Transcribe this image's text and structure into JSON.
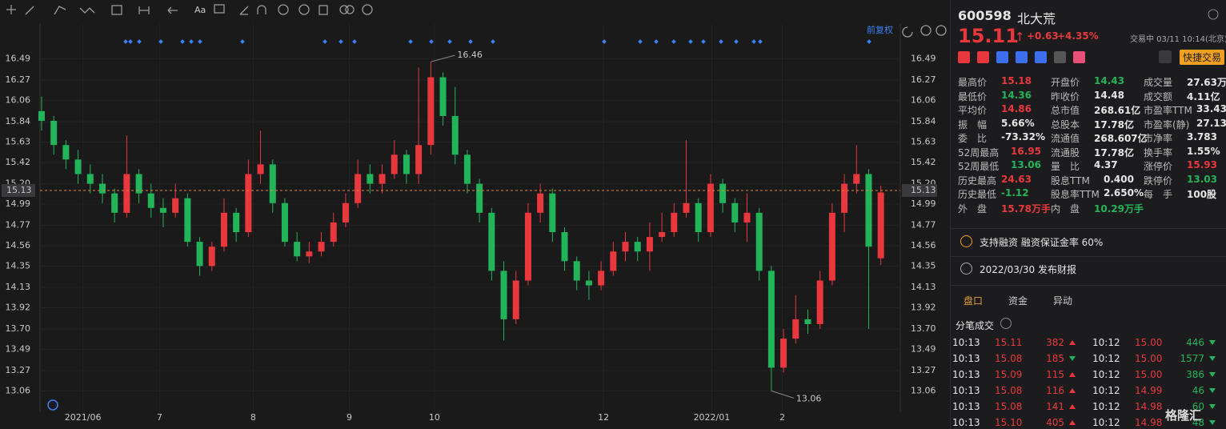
{
  "toolbar": {
    "font_label": "Aa"
  },
  "chart_data": {
    "type": "candlestick",
    "adjust_mode": "前复权",
    "up_color": "#e8383d",
    "down_color": "#22b45a",
    "grid": true,
    "ylim": [
      12.84,
      16.85
    ],
    "yticks": [
      16.49,
      16.27,
      16.06,
      15.84,
      15.63,
      15.42,
      {
        "value": 15.2,
        "label": "15.20"
      },
      14.99,
      14.77,
      14.56,
      14.35,
      14.13,
      13.92,
      {
        "value": 13.7,
        "label": "13.70"
      },
      13.49,
      13.27,
      13.06
    ],
    "xlim": [
      -0.13,
      70.6
    ],
    "xticks": [
      {
        "value": 3.4,
        "label": "2021/06"
      },
      {
        "value": 9.7,
        "label": "7"
      },
      {
        "value": 17.4,
        "label": "8"
      },
      {
        "value": 25.3,
        "label": "9"
      },
      {
        "value": 32.3,
        "label": "10"
      },
      {
        "value": 46.2,
        "label": "12"
      },
      {
        "value": 55.1,
        "label": "2022/01"
      },
      {
        "value": 60.9,
        "label": "2"
      }
    ],
    "price_line": 15.13,
    "annotations": [
      16.46,
      13.06
    ],
    "candles": [
      [
        15.95,
        16.1,
        15.75,
        15.85
      ],
      [
        15.85,
        15.9,
        15.5,
        15.6
      ],
      [
        15.6,
        15.65,
        15.35,
        15.45
      ],
      [
        15.45,
        15.55,
        15.2,
        15.3
      ],
      [
        15.3,
        15.4,
        15.1,
        15.2
      ],
      [
        15.2,
        15.3,
        15.0,
        15.1
      ],
      [
        15.1,
        15.15,
        14.8,
        14.9
      ],
      [
        14.9,
        15.7,
        14.85,
        15.3
      ],
      [
        15.3,
        15.35,
        15.0,
        15.1
      ],
      [
        15.1,
        15.2,
        14.85,
        14.95
      ],
      [
        14.95,
        15.05,
        14.75,
        14.9
      ],
      [
        14.9,
        15.2,
        14.85,
        15.05
      ],
      [
        15.05,
        15.1,
        14.55,
        14.6
      ],
      [
        14.6,
        14.65,
        14.25,
        14.35
      ],
      [
        14.35,
        14.6,
        14.3,
        14.55
      ],
      [
        14.55,
        15.05,
        14.5,
        14.9
      ],
      [
        14.9,
        14.95,
        14.6,
        14.7
      ],
      [
        14.7,
        15.45,
        14.65,
        15.3
      ],
      [
        15.3,
        15.75,
        15.2,
        15.4
      ],
      [
        15.4,
        15.45,
        14.9,
        15.0
      ],
      [
        15.0,
        15.05,
        14.55,
        14.6
      ],
      [
        14.6,
        14.7,
        14.4,
        14.45
      ],
      [
        14.45,
        14.6,
        14.38,
        14.5
      ],
      [
        14.5,
        14.7,
        14.45,
        14.6
      ],
      [
        14.6,
        14.9,
        14.55,
        14.8
      ],
      [
        14.8,
        15.1,
        14.75,
        15.0
      ],
      [
        15.0,
        15.45,
        14.95,
        15.3
      ],
      [
        15.3,
        15.4,
        15.1,
        15.2
      ],
      [
        15.2,
        15.4,
        15.1,
        15.3
      ],
      [
        15.3,
        15.65,
        15.25,
        15.5
      ],
      [
        15.5,
        15.55,
        15.2,
        15.3
      ],
      [
        15.3,
        16.4,
        15.2,
        15.6
      ],
      [
        15.6,
        16.46,
        15.5,
        16.3
      ],
      [
        16.3,
        16.35,
        15.8,
        15.9
      ],
      [
        15.9,
        16.2,
        15.4,
        15.5
      ],
      [
        15.5,
        15.55,
        15.1,
        15.2
      ],
      [
        15.2,
        15.25,
        14.8,
        14.9
      ],
      [
        14.9,
        14.95,
        14.2,
        14.3
      ],
      [
        14.3,
        14.4,
        13.58,
        13.8
      ],
      [
        13.8,
        14.3,
        13.75,
        14.2
      ],
      [
        14.2,
        15.0,
        14.15,
        14.9
      ],
      [
        14.9,
        15.2,
        14.8,
        15.1
      ],
      [
        15.1,
        15.15,
        14.6,
        14.7
      ],
      [
        14.7,
        14.75,
        14.3,
        14.4
      ],
      [
        14.4,
        14.45,
        14.1,
        14.2
      ],
      [
        14.2,
        14.3,
        14.0,
        14.15
      ],
      [
        14.15,
        14.4,
        14.1,
        14.3
      ],
      [
        14.3,
        14.6,
        14.25,
        14.5
      ],
      [
        14.5,
        14.7,
        14.4,
        14.6
      ],
      [
        14.6,
        14.65,
        14.4,
        14.5
      ],
      [
        14.5,
        14.8,
        14.3,
        14.65
      ],
      [
        14.65,
        14.9,
        14.6,
        14.7
      ],
      [
        14.7,
        15.0,
        14.65,
        14.9
      ],
      [
        14.9,
        15.65,
        14.85,
        15.0
      ],
      [
        15.0,
        15.05,
        14.6,
        14.7
      ],
      [
        14.7,
        15.3,
        14.65,
        15.2
      ],
      [
        15.2,
        15.25,
        14.9,
        15.0
      ],
      [
        15.0,
        15.05,
        14.7,
        14.8
      ],
      [
        14.8,
        15.1,
        14.6,
        14.9
      ],
      [
        14.9,
        14.95,
        14.2,
        14.3
      ],
      [
        14.3,
        14.35,
        13.06,
        13.3
      ],
      [
        13.3,
        13.7,
        13.25,
        13.6
      ],
      [
        13.6,
        14.05,
        13.55,
        13.8
      ],
      [
        13.8,
        13.9,
        13.65,
        13.75
      ],
      [
        13.75,
        14.3,
        13.7,
        14.2
      ],
      [
        14.2,
        15.0,
        14.15,
        14.9
      ],
      [
        14.9,
        15.3,
        14.7,
        15.2
      ],
      [
        15.2,
        15.6,
        15.1,
        15.3
      ],
      [
        15.3,
        15.35,
        13.7,
        14.55
      ],
      [
        14.43,
        15.18,
        14.36,
        15.11
      ]
    ]
  },
  "quote": {
    "code": "600598",
    "name": "北大荒",
    "price": "15.11",
    "change": "+0.63",
    "pct": "+4.35%",
    "status": "交易中 03/11 10:14(北京)",
    "trade_button": "快捷交易"
  },
  "stats": [
    [
      {
        "label": "最高价",
        "value": "15.18",
        "color": "#e8383d"
      },
      {
        "label": "开盘价",
        "value": "14.43",
        "color": "#22b45a"
      },
      {
        "label": "成交量",
        "value": "27.63万手",
        "color": "#e6e6e6"
      }
    ],
    [
      {
        "label": "最低价",
        "value": "14.36",
        "color": "#22b45a"
      },
      {
        "label": "昨收价",
        "value": "14.48",
        "color": "#e6e6e6"
      },
      {
        "label": "成交额",
        "value": "4.11亿",
        "color": "#e6e6e6"
      }
    ],
    [
      {
        "label": "平均价",
        "value": "14.86",
        "color": "#e8383d"
      },
      {
        "label": "总市值",
        "value": "268.61亿",
        "color": "#e6e6e6"
      },
      {
        "label": "市盈率TTM",
        "value": "33.43",
        "color": "#e6e6e6"
      }
    ],
    [
      {
        "label": "振　幅",
        "value": "5.66%",
        "color": "#e6e6e6"
      },
      {
        "label": "总股本",
        "value": "17.78亿",
        "color": "#e6e6e6"
      },
      {
        "label": "市盈率(静)",
        "value": "27.13",
        "color": "#e6e6e6"
      }
    ],
    [
      {
        "label": "委　比",
        "value": "-73.32%",
        "color": "#e6e6e6"
      },
      {
        "label": "流通值",
        "value": "268.607亿",
        "color": "#e6e6e6"
      },
      {
        "label": "市净率",
        "value": "3.783",
        "color": "#e6e6e6"
      }
    ],
    [
      {
        "label": "52周最高",
        "value": "16.95",
        "color": "#e8383d"
      },
      {
        "label": "流通股",
        "value": "17.78亿",
        "color": "#e6e6e6"
      },
      {
        "label": "换手率",
        "value": "1.55%",
        "color": "#e6e6e6"
      }
    ],
    [
      {
        "label": "52周最低",
        "value": "13.06",
        "color": "#22b45a"
      },
      {
        "label": "量　比",
        "value": "4.37",
        "color": "#e6e6e6"
      },
      {
        "label": "涨停价",
        "value": "15.93",
        "color": "#e8383d"
      }
    ],
    [
      {
        "label": "历史最高",
        "value": "24.63",
        "color": "#e8383d"
      },
      {
        "label": "股息TTM",
        "value": "0.400",
        "color": "#e6e6e6"
      },
      {
        "label": "跌停价",
        "value": "13.03",
        "color": "#22b45a"
      }
    ],
    [
      {
        "label": "历史最低",
        "value": "-1.12",
        "color": "#22b45a"
      },
      {
        "label": "股息率TTM",
        "value": "2.650%",
        "color": "#e6e6e6"
      },
      {
        "label": "每　手",
        "value": "100股",
        "color": "#e6e6e6"
      }
    ],
    [
      {
        "label": "外　盘",
        "value": "15.78万手",
        "color": "#e8383d"
      },
      {
        "label": "内　盘",
        "value": "10.29万手",
        "color": "#22b45a"
      }
    ]
  ],
  "notices": [
    "支持融资 融资保证金率 60%",
    "2022/03/30 发布财报"
  ],
  "tabs": [
    "盘口",
    "资金",
    "异动"
  ],
  "trades_title": "分笔成交",
  "trades": [
    [
      {
        "time": "10:13",
        "price": "15.11",
        "vol": "382",
        "dir": "up"
      },
      {
        "time": "10:12",
        "price": "15.00",
        "vol": "446",
        "dir": "down"
      }
    ],
    [
      {
        "time": "10:13",
        "price": "15.08",
        "vol": "185",
        "dir": "down"
      },
      {
        "time": "10:12",
        "price": "15.00",
        "vol": "1577",
        "dir": "down"
      }
    ],
    [
      {
        "time": "10:13",
        "price": "15.09",
        "vol": "115",
        "dir": "up"
      },
      {
        "time": "10:12",
        "price": "15.00",
        "vol": "386",
        "dir": "down"
      }
    ],
    [
      {
        "time": "10:13",
        "price": "15.08",
        "vol": "116",
        "dir": "up"
      },
      {
        "time": "10:12",
        "price": "14.99",
        "vol": "46",
        "dir": "down"
      }
    ],
    [
      {
        "time": "10:13",
        "price": "15.08",
        "vol": "141",
        "dir": "up"
      },
      {
        "time": "10:12",
        "price": "14.98",
        "vol": "60",
        "dir": "down"
      }
    ],
    [
      {
        "time": "10:13",
        "price": "15.10",
        "vol": "405",
        "dir": "up"
      },
      {
        "time": "10:12",
        "price": "14.98",
        "vol": "48",
        "dir": "down"
      }
    ]
  ],
  "watermark": "格隆汇"
}
